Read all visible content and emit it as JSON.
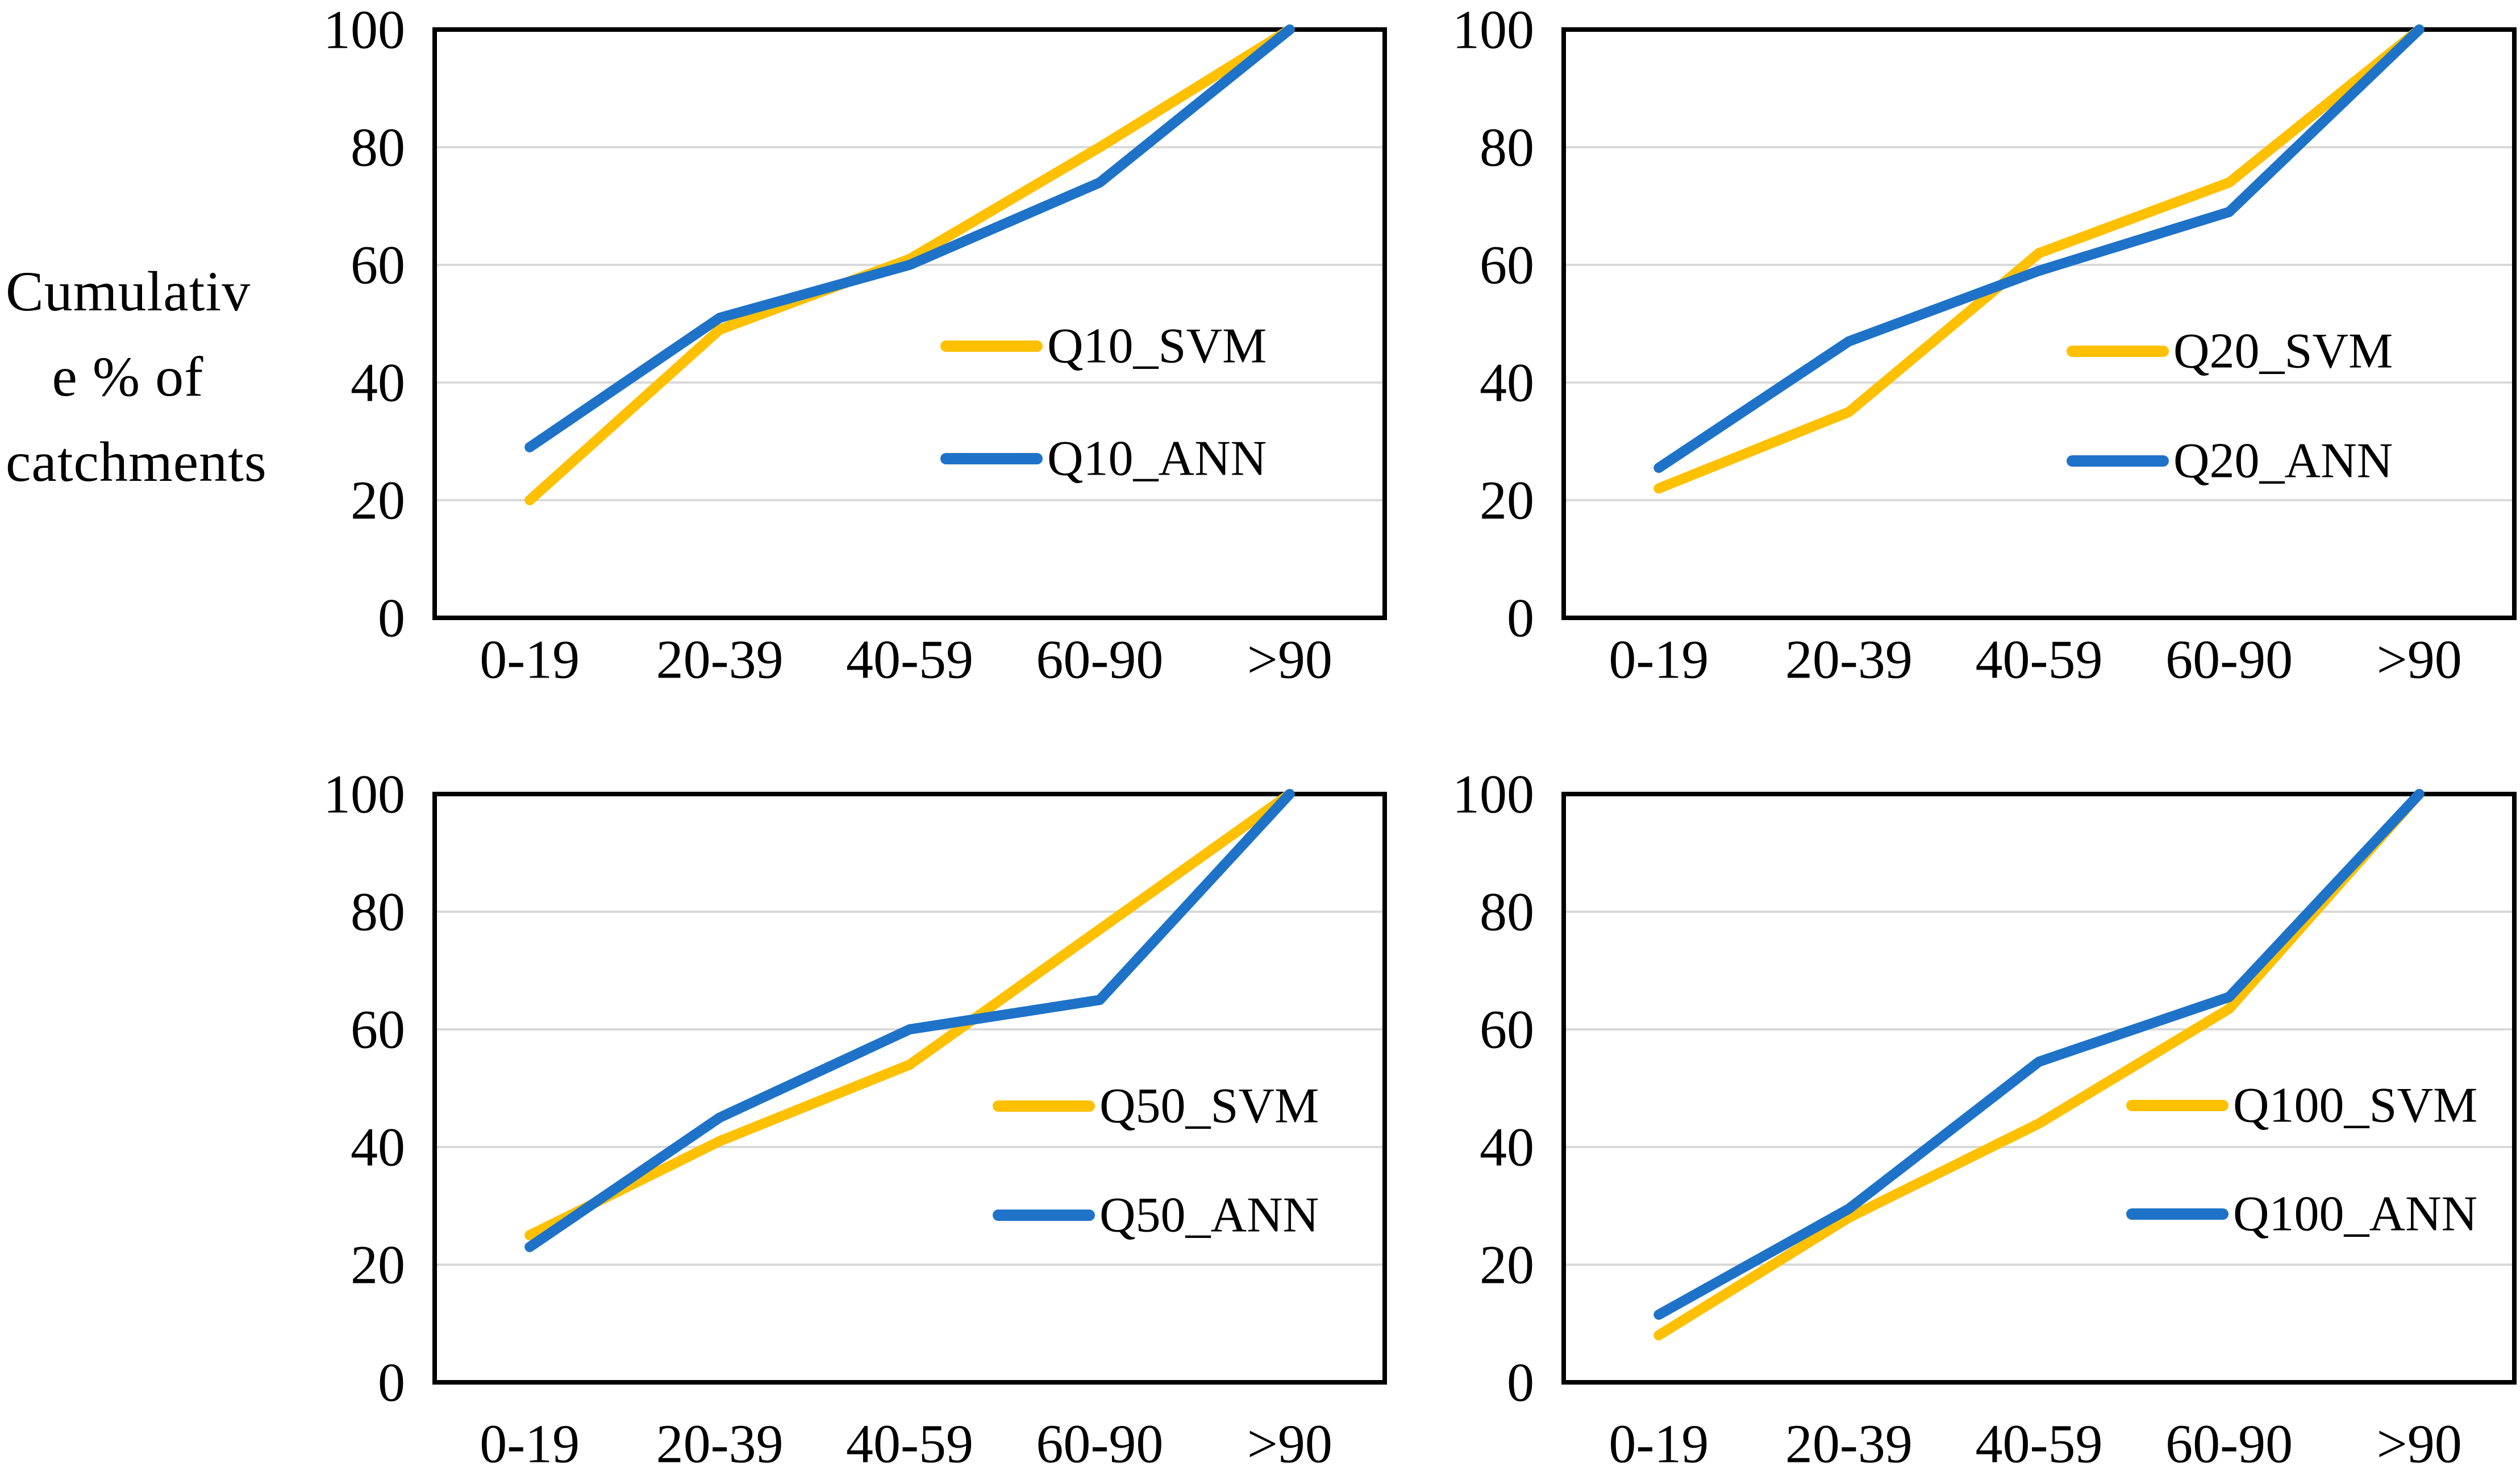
{
  "figure": {
    "y_axis_label": {
      "line1": "Cumulativ",
      "line2": "e % of",
      "line3": "catchments"
    },
    "colors": {
      "svm_line": "#FFC000",
      "ann_line": "#1E73C8",
      "gridline": "#D9D9D9",
      "plot_border": "#000000",
      "text": "#000000",
      "background": "#FFFFFF"
    }
  },
  "chart_data": [
    {
      "type": "line",
      "position": "top-left",
      "title": "",
      "xlabel": "",
      "ylabel": "",
      "categories": [
        "0-19",
        "20-39",
        "40-59",
        "60-90",
        ">90"
      ],
      "ylim": [
        0,
        100
      ],
      "yticks": [
        0,
        20,
        40,
        60,
        80,
        100
      ],
      "gridlines": [
        20,
        40,
        60,
        80
      ],
      "grid": "horizontal-only",
      "legend_position": "inside-right",
      "series": [
        {
          "name": "Q10_SVM",
          "color": "#FFC000",
          "values": [
            20,
            49,
            61,
            80,
            100
          ]
        },
        {
          "name": "Q10_ANN",
          "color": "#1E73C8",
          "values": [
            29,
            51,
            60,
            74,
            100
          ]
        }
      ]
    },
    {
      "type": "line",
      "position": "top-right",
      "title": "",
      "xlabel": "",
      "ylabel": "",
      "categories": [
        "0-19",
        "20-39",
        "40-59",
        "60-90",
        ">90"
      ],
      "ylim": [
        0,
        100
      ],
      "yticks": [
        0,
        20,
        40,
        60,
        80,
        100
      ],
      "gridlines": [
        20,
        40,
        60,
        80
      ],
      "grid": "horizontal-only",
      "legend_position": "inside-right",
      "series": [
        {
          "name": "Q20_SVM",
          "color": "#FFC000",
          "values": [
            22,
            35,
            62,
            74,
            100
          ]
        },
        {
          "name": "Q20_ANN",
          "color": "#1E73C8",
          "values": [
            25.5,
            47,
            59,
            69,
            100
          ]
        }
      ]
    },
    {
      "type": "line",
      "position": "bottom-left",
      "title": "",
      "xlabel": "",
      "ylabel": "",
      "categories": [
        "0-19",
        "20-39",
        "40-59",
        "60-90",
        ">90"
      ],
      "ylim": [
        0,
        100
      ],
      "yticks": [
        0,
        20,
        40,
        60,
        80,
        100
      ],
      "gridlines": [
        20,
        40,
        60,
        80
      ],
      "grid": "horizontal-only",
      "legend_position": "inside-right",
      "series": [
        {
          "name": "Q50_SVM",
          "color": "#FFC000",
          "values": [
            25,
            41,
            54,
            77,
            100
          ]
        },
        {
          "name": "Q50_ANN",
          "color": "#1E73C8",
          "values": [
            23,
            45,
            60,
            65,
            100
          ]
        }
      ]
    },
    {
      "type": "line",
      "position": "bottom-right",
      "title": "",
      "xlabel": "",
      "ylabel": "",
      "categories": [
        "0-19",
        "20-39",
        "40-59",
        "60-90",
        ">90"
      ],
      "ylim": [
        0,
        100
      ],
      "yticks": [
        0,
        20,
        40,
        60,
        80,
        100
      ],
      "gridlines": [
        20,
        40,
        60,
        80
      ],
      "grid": "horizontal-only",
      "legend_position": "inside-right",
      "series": [
        {
          "name": "Q100_SVM",
          "color": "#FFC000",
          "values": [
            8,
            28,
            44,
            63.5,
            100
          ]
        },
        {
          "name": "Q100_ANN",
          "color": "#1E73C8",
          "values": [
            11.5,
            29.5,
            54.5,
            65.5,
            100
          ]
        }
      ]
    }
  ]
}
